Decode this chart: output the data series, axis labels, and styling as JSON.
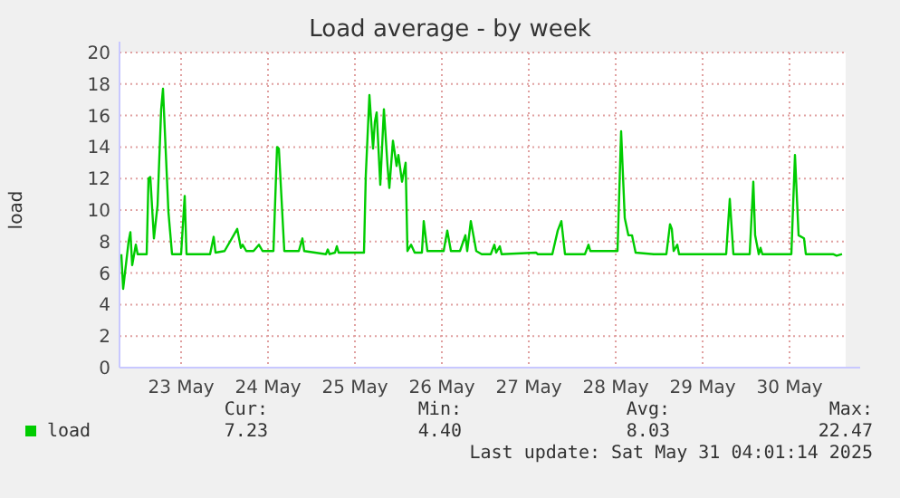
{
  "chart_data": {
    "type": "line",
    "title": "Load average - by week",
    "ylabel": "load",
    "xlim": [
      "2025-05-22T19:00",
      "2025-05-31T03:30"
    ],
    "xticks": [
      {
        "value": "2025-05-23T12:00",
        "label": "23 May"
      },
      {
        "value": "2025-05-24T12:00",
        "label": "24 May"
      },
      {
        "value": "2025-05-25T12:00",
        "label": "25 May"
      },
      {
        "value": "2025-05-26T12:00",
        "label": "26 May"
      },
      {
        "value": "2025-05-27T12:00",
        "label": "27 May"
      },
      {
        "value": "2025-05-28T12:00",
        "label": "28 May"
      },
      {
        "value": "2025-05-29T12:00",
        "label": "29 May"
      },
      {
        "value": "2025-05-30T12:00",
        "label": "30 May"
      }
    ],
    "ylim": [
      0,
      20
    ],
    "yticks": [
      0,
      2,
      4,
      6,
      8,
      10,
      12,
      14,
      16,
      18,
      20
    ],
    "grid": true,
    "legend": "bottom left",
    "annotations": [
      "Cur:",
      "7.23",
      "Min:",
      "4.40",
      "Avg:",
      "8.03",
      "Max:",
      "22.47",
      "Last update: Sat May 31 04:01:14 2025"
    ],
    "series": [
      {
        "name": "load",
        "color": "#00cc00",
        "x": [
          "2025-05-22T19:30",
          "2025-05-22T20:00",
          "2025-05-22T21:30",
          "2025-05-22T22:00",
          "2025-05-22T22:30",
          "2025-05-22T23:30",
          "2025-05-23T00:00",
          "2025-05-23T02:30",
          "2025-05-23T03:00",
          "2025-05-23T03:30",
          "2025-05-23T04:30",
          "2025-05-23T05:30",
          "2025-05-23T06:30",
          "2025-05-23T07:00",
          "2025-05-23T08:30",
          "2025-05-23T09:30",
          "2025-05-23T12:00",
          "2025-05-23T13:00",
          "2025-05-23T13:30",
          "2025-05-23T20:00",
          "2025-05-23T21:00",
          "2025-05-23T21:30",
          "2025-05-24T00:00",
          "2025-05-24T03:30",
          "2025-05-24T04:30",
          "2025-05-24T05:00",
          "2025-05-24T06:00",
          "2025-05-24T08:00",
          "2025-05-24T09:30",
          "2025-05-24T10:30",
          "2025-05-24T13:30",
          "2025-05-24T14:30",
          "2025-05-24T15:00",
          "2025-05-24T16:30",
          "2025-05-24T20:30",
          "2025-05-24T21:30",
          "2025-05-24T22:00",
          "2025-05-25T04:00",
          "2025-05-25T04:30",
          "2025-05-25T05:00",
          "2025-05-25T06:30",
          "2025-05-25T07:00",
          "2025-05-25T07:30",
          "2025-05-25T14:30",
          "2025-05-25T15:00",
          "2025-05-25T16:00",
          "2025-05-25T17:00",
          "2025-05-25T17:30",
          "2025-05-25T18:00",
          "2025-05-25T19:00",
          "2025-05-25T20:00",
          "2025-05-25T21:00",
          "2025-05-25T21:30",
          "2025-05-25T22:30",
          "2025-05-25T23:30",
          "2025-05-26T00:00",
          "2025-05-26T01:00",
          "2025-05-26T02:00",
          "2025-05-26T02:30",
          "2025-05-26T03:30",
          "2025-05-26T04:30",
          "2025-05-26T06:30",
          "2025-05-26T07:00",
          "2025-05-26T08:00",
          "2025-05-26T12:30",
          "2025-05-26T13:30",
          "2025-05-26T14:30",
          "2025-05-26T17:00",
          "2025-05-26T18:30",
          "2025-05-26T19:00",
          "2025-05-26T20:00",
          "2025-05-26T21:30",
          "2025-05-26T23:00",
          "2025-05-27T01:30",
          "2025-05-27T02:30",
          "2025-05-27T03:00",
          "2025-05-27T04:00",
          "2025-05-27T04:30",
          "2025-05-27T14:00",
          "2025-05-27T14:30",
          "2025-05-27T18:30",
          "2025-05-27T20:00",
          "2025-05-27T21:00",
          "2025-05-27T22:00",
          "2025-05-28T03:30",
          "2025-05-28T04:30",
          "2025-05-28T05:00",
          "2025-05-28T12:30",
          "2025-05-28T13:30",
          "2025-05-28T14:30",
          "2025-05-28T15:30",
          "2025-05-28T16:30",
          "2025-05-28T17:30",
          "2025-05-28T22:30",
          "2025-05-29T02:00",
          "2025-05-29T03:00",
          "2025-05-29T03:30",
          "2025-05-29T04:00",
          "2025-05-29T05:00",
          "2025-05-29T05:30",
          "2025-05-29T18:30",
          "2025-05-29T19:30",
          "2025-05-29T20:30",
          "2025-05-30T01:00",
          "2025-05-30T02:00",
          "2025-05-30T02:30",
          "2025-05-30T03:30",
          "2025-05-30T04:00",
          "2025-05-30T04:30",
          "2025-05-30T12:30",
          "2025-05-30T13:30",
          "2025-05-30T14:30",
          "2025-05-30T16:00",
          "2025-05-30T16:30",
          "2025-05-31T00:00",
          "2025-05-31T01:00",
          "2025-05-31T02:30"
        ],
        "values": [
          7.2,
          5.0,
          8.0,
          8.6,
          6.5,
          7.8,
          7.2,
          7.2,
          12.0,
          12.1,
          8.2,
          10.3,
          16.4,
          17.7,
          9.9,
          7.2,
          7.2,
          10.9,
          7.2,
          7.2,
          8.3,
          7.3,
          7.4,
          8.8,
          7.6,
          7.8,
          7.4,
          7.4,
          7.8,
          7.4,
          7.4,
          14.0,
          13.9,
          7.4,
          7.4,
          8.2,
          7.4,
          7.2,
          7.5,
          7.2,
          7.3,
          7.7,
          7.3,
          7.3,
          12.2,
          17.3,
          13.9,
          15.6,
          16.2,
          11.6,
          16.4,
          12.8,
          11.4,
          14.4,
          12.8,
          13.5,
          11.8,
          13.0,
          7.4,
          7.8,
          7.3,
          7.3,
          9.3,
          7.4,
          7.4,
          8.7,
          7.4,
          7.4,
          8.4,
          7.4,
          9.3,
          7.4,
          7.2,
          7.2,
          7.8,
          7.3,
          7.7,
          7.2,
          7.3,
          7.2,
          7.2,
          8.7,
          9.3,
          7.2,
          7.2,
          7.8,
          7.4,
          7.4,
          15.0,
          9.5,
          8.4,
          8.4,
          7.3,
          7.2,
          7.2,
          9.1,
          8.8,
          7.4,
          7.8,
          7.2,
          7.2,
          10.7,
          7.2,
          7.2,
          11.8,
          8.4,
          7.2,
          7.6,
          7.2,
          7.2,
          13.5,
          8.4,
          8.2,
          7.2,
          7.2,
          7.1,
          7.2
        ]
      }
    ]
  }
}
